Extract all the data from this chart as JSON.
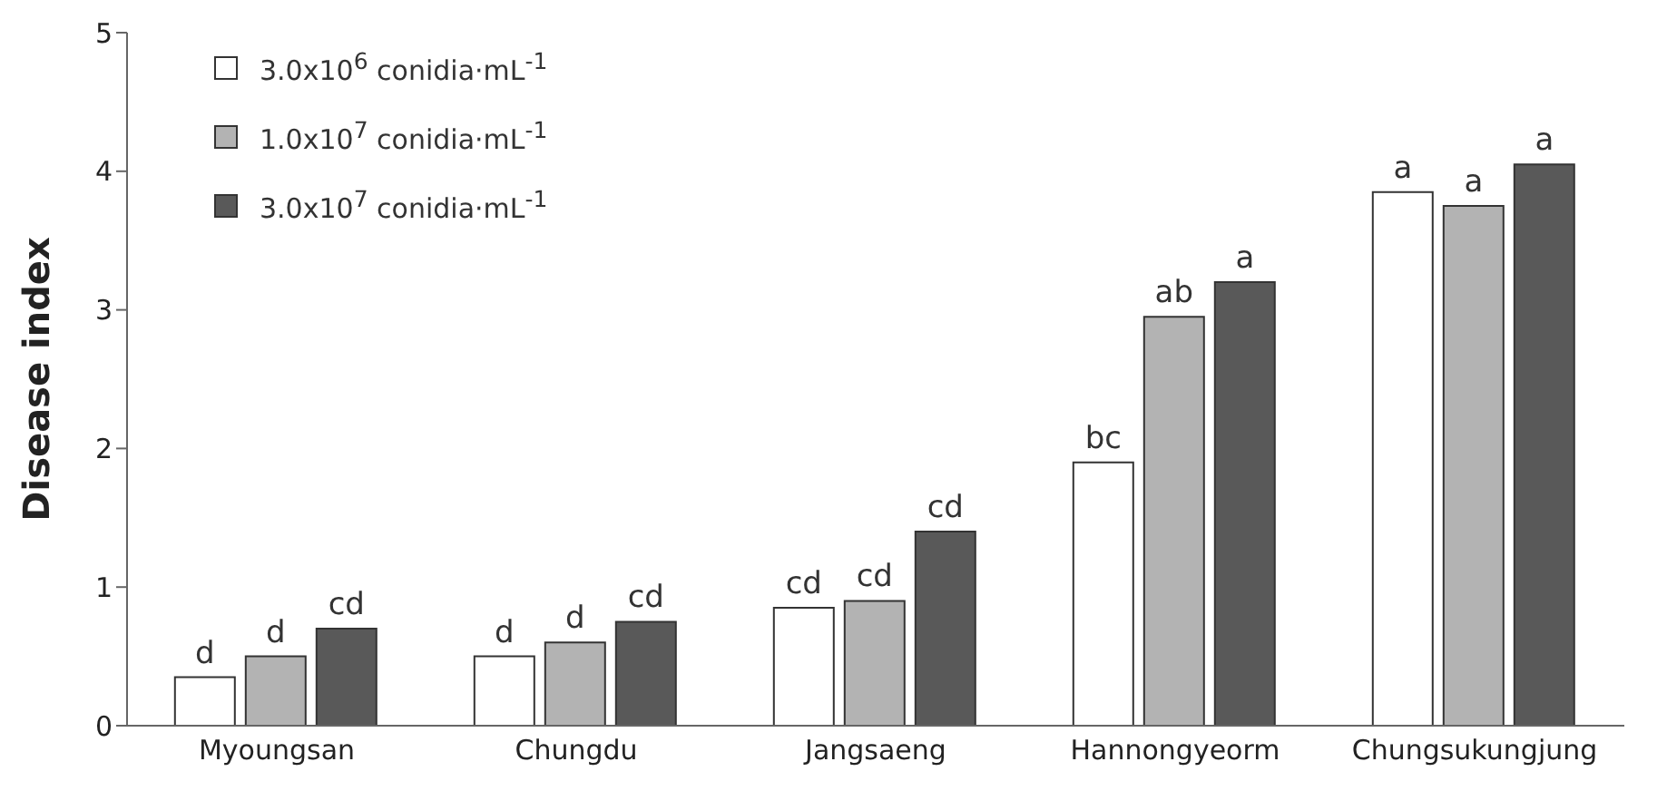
{
  "chart_data": {
    "type": "bar",
    "ylabel": "Disease index",
    "categories": [
      "Myoungsan",
      "Chungdu",
      "Jangsaeng",
      "Hannongyeorm",
      "Chungsukungjung"
    ],
    "series": [
      {
        "name": "3.0x10$^{6}$ conidia·mL$^{-1}$",
        "color": "#ffffff",
        "values": [
          0.35,
          0.5,
          0.85,
          1.9,
          3.85
        ],
        "value_labels": [
          "d",
          "d",
          "cd",
          "bc",
          "a"
        ]
      },
      {
        "name": "1.0x10$^{7}$ conidia·mL$^{-1}$",
        "color": "#b3b3b3",
        "values": [
          0.5,
          0.6,
          0.9,
          2.95,
          3.75
        ],
        "value_labels": [
          "d",
          "d",
          "cd",
          "ab",
          "a"
        ]
      },
      {
        "name": "3.0x10$^{7}$ conidia·mL$^{-1}$",
        "color": "#595959",
        "values": [
          0.7,
          0.75,
          1.4,
          3.2,
          4.05
        ],
        "value_labels": [
          "cd",
          "cd",
          "cd",
          "a",
          "a"
        ]
      }
    ],
    "ylim": [
      0,
      5
    ],
    "yticks": [
      0,
      1,
      2,
      3,
      4,
      5
    ],
    "grid": false,
    "legend": "top left"
  }
}
